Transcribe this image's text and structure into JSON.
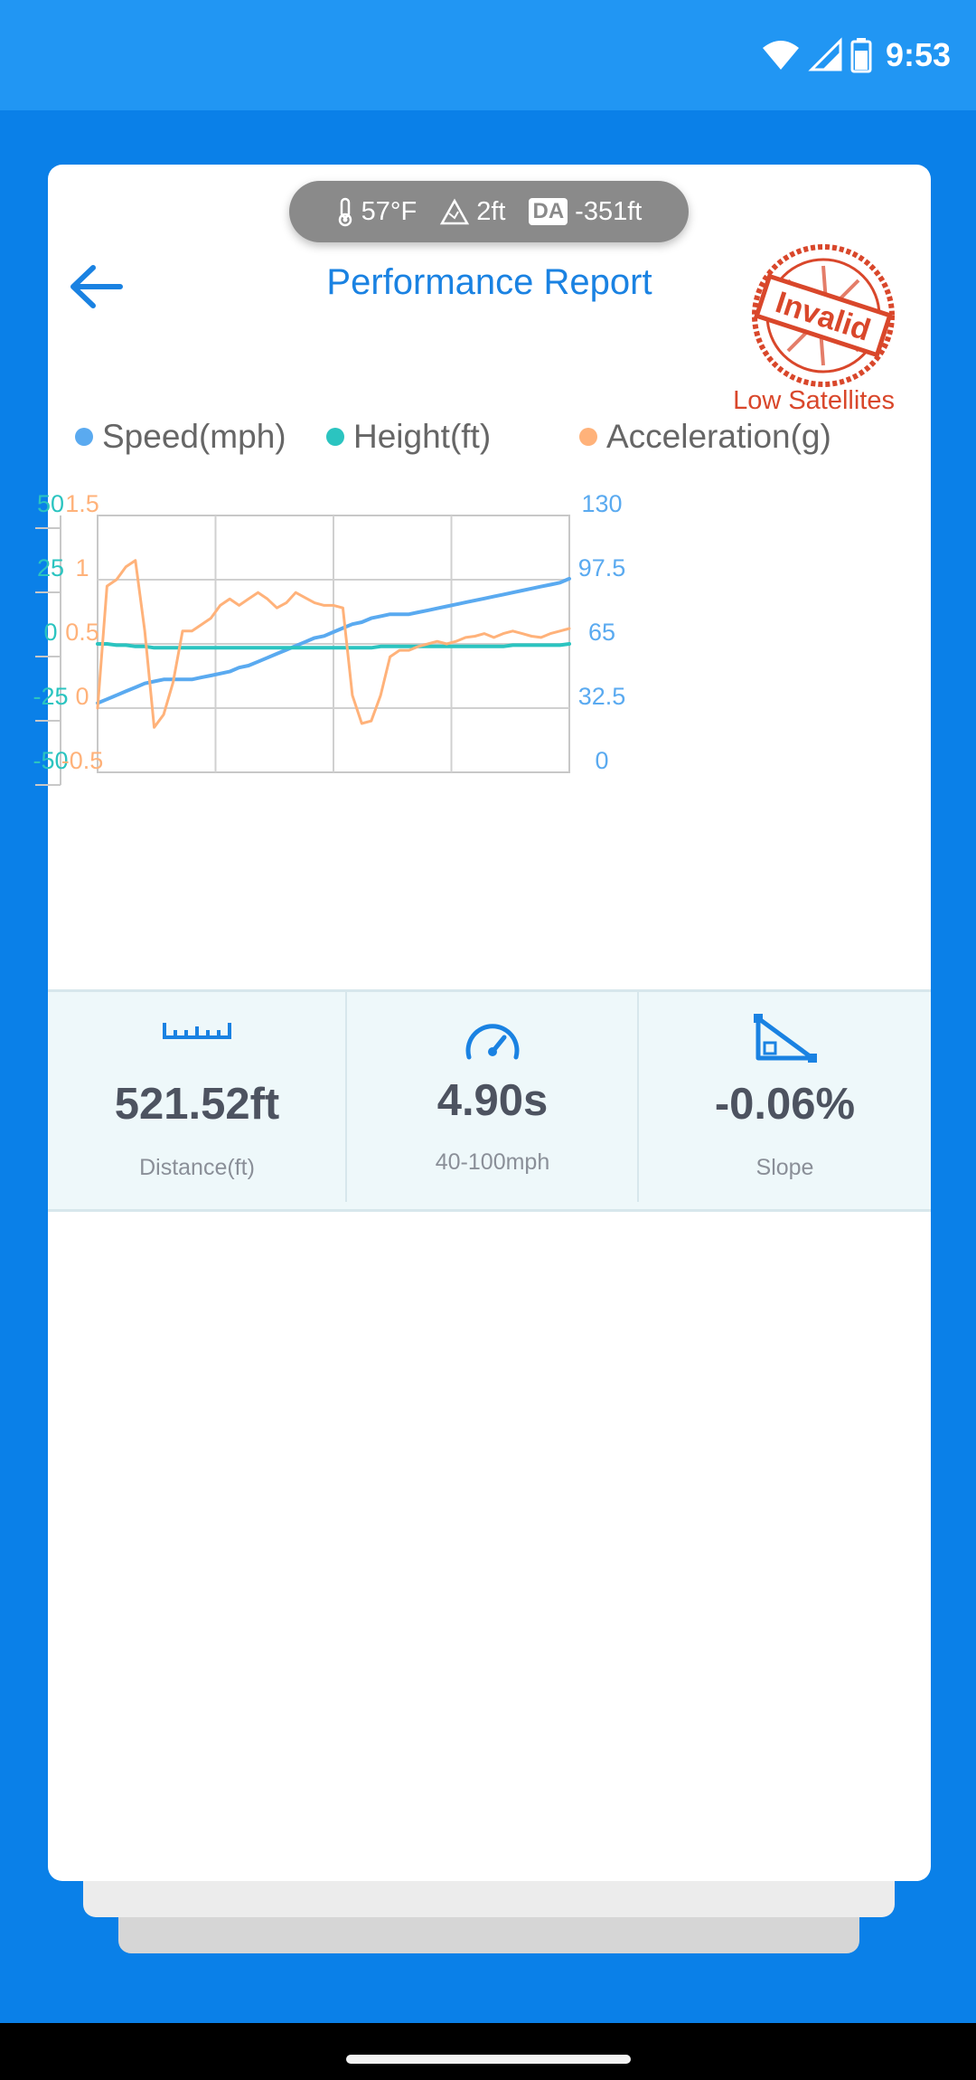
{
  "status_bar": {
    "time": "9:53"
  },
  "environment": {
    "temperature": "57°F",
    "altitude": "2ft",
    "da_badge": "DA",
    "density_altitude": "-351ft"
  },
  "header": {
    "title": "Performance Report",
    "stamp_text": "Invalid",
    "stamp_label": "Low Satellites"
  },
  "legend": [
    {
      "label": "Speed(mph)",
      "color": "#5aaaf0"
    },
    {
      "label": "Height(ft)",
      "color": "#2bc4c0"
    },
    {
      "label": "Acceleration(g)",
      "color": "#ffb27a"
    }
  ],
  "chart_data": {
    "type": "line",
    "x": [
      0,
      2,
      4,
      6,
      8,
      10,
      12,
      14,
      16,
      18,
      20,
      22,
      24,
      26,
      28,
      30,
      32,
      34,
      36,
      38,
      40,
      42,
      44,
      46,
      48,
      50,
      52,
      54,
      56,
      58,
      60,
      62,
      64,
      66,
      68,
      70,
      72,
      74,
      76,
      78,
      80,
      82,
      84,
      86,
      88,
      90,
      92,
      94,
      96,
      98,
      100
    ],
    "axes": {
      "height": {
        "ticks": [
          "50",
          "25",
          "0",
          "-25",
          "-50"
        ],
        "range": [
          -50,
          50
        ],
        "color": "#2bc4c0"
      },
      "acceleration": {
        "ticks": [
          "1.5",
          "1",
          "0.5",
          "0",
          "-0.5"
        ],
        "range": [
          -0.5,
          1.5
        ],
        "color": "#ffb27a"
      },
      "speed": {
        "ticks": [
          "130",
          "97.5",
          "65",
          "32.5",
          "0"
        ],
        "range": [
          0,
          130
        ],
        "color": "#5aaaf0"
      }
    },
    "series": [
      {
        "name": "Speed(mph)",
        "axis": "speed",
        "color": "#5aaaf0",
        "values": [
          35,
          37,
          39,
          41,
          43,
          45,
          46,
          47,
          47,
          47,
          47,
          48,
          49,
          50,
          51,
          53,
          54,
          56,
          58,
          60,
          62,
          64,
          66,
          68,
          69,
          71,
          73,
          75,
          76,
          78,
          79,
          80,
          80,
          80,
          81,
          82,
          83,
          84,
          85,
          86,
          87,
          88,
          89,
          90,
          91,
          92,
          93,
          94,
          95,
          96,
          98
        ]
      },
      {
        "name": "Height(ft)",
        "axis": "height",
        "color": "#2bc4c0",
        "values": [
          0,
          0,
          -0.5,
          -0.5,
          -1,
          -1,
          -1.5,
          -1.5,
          -1.5,
          -1.5,
          -1.5,
          -1.5,
          -1.5,
          -1.5,
          -1.5,
          -1.5,
          -1.5,
          -1.5,
          -1.5,
          -1.5,
          -1.5,
          -1.5,
          -1.5,
          -1.5,
          -1.5,
          -1.5,
          -1.5,
          -1.5,
          -1.5,
          -1.5,
          -1,
          -1,
          -1,
          -1,
          -1,
          -1,
          -1,
          -1,
          -1,
          -1,
          -1,
          -1,
          -1,
          -1,
          -0.5,
          -0.5,
          -0.5,
          -0.5,
          -0.5,
          -0.5,
          0
        ]
      },
      {
        "name": "Acceleration(g)",
        "axis": "acceleration",
        "color": "#ffb27a",
        "values": [
          0,
          0.95,
          1,
          1.1,
          1.15,
          0.6,
          -0.15,
          -0.05,
          0.2,
          0.6,
          0.6,
          0.65,
          0.7,
          0.8,
          0.85,
          0.8,
          0.85,
          0.9,
          0.85,
          0.78,
          0.82,
          0.9,
          0.86,
          0.82,
          0.8,
          0.8,
          0.78,
          0.1,
          -0.12,
          -0.1,
          0.1,
          0.4,
          0.45,
          0.45,
          0.48,
          0.5,
          0.52,
          0.5,
          0.52,
          0.55,
          0.56,
          0.58,
          0.55,
          0.58,
          0.6,
          0.58,
          0.56,
          0.55,
          0.58,
          0.6,
          0.62
        ]
      }
    ],
    "grid": true,
    "legend_position": "top"
  },
  "stats": [
    {
      "icon": "ruler-icon",
      "value": "521.52ft",
      "label": "Distance(ft)"
    },
    {
      "icon": "speedometer-icon",
      "value": "4.90s",
      "label": "40-100mph"
    },
    {
      "icon": "slope-icon",
      "value": "-0.06%",
      "label": "Slope"
    }
  ],
  "colors": {
    "primary": "#1a82e2",
    "background": "#0a80e8",
    "stamp": "#d9472b"
  }
}
